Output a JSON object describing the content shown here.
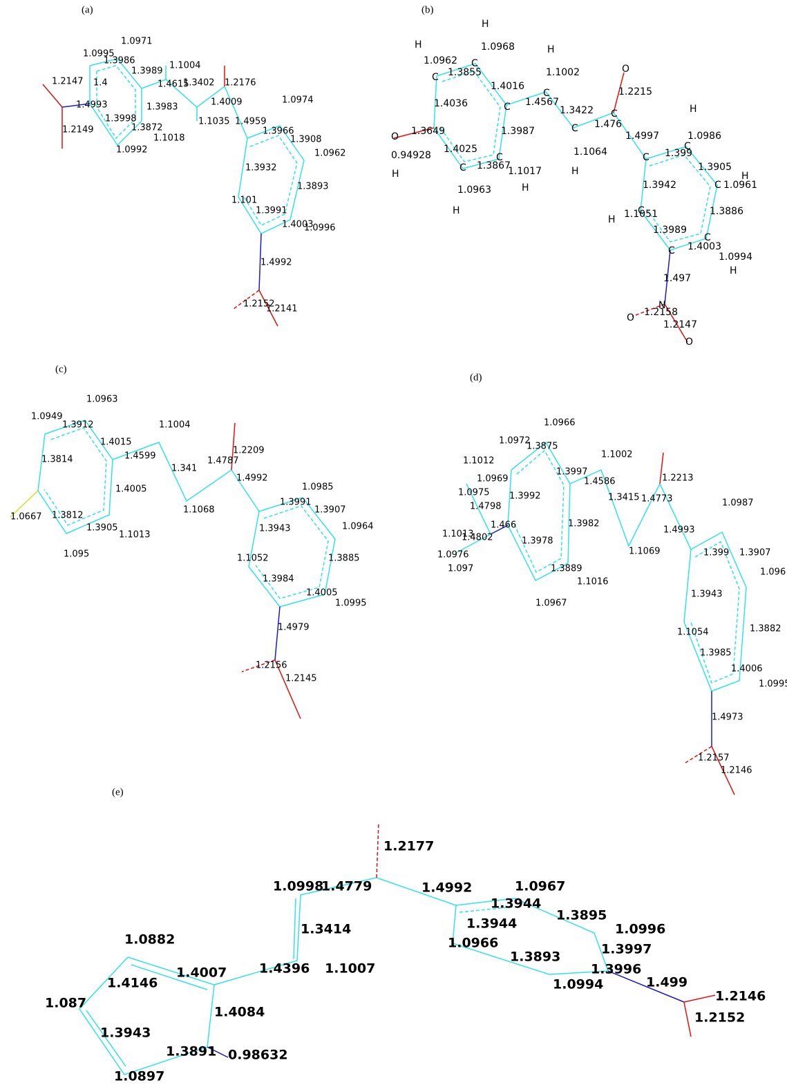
{
  "panels": [
    {
      "tag": "(a)",
      "labels": [
        "1.0971",
        "1.0995",
        "1.3986",
        "1.3989",
        "1.1004",
        "1.2176",
        "1.4615",
        "1.3402",
        "1.2147",
        "1.4",
        "1.4993",
        "1.4009",
        "1.0974",
        "1.3983",
        "1.2149",
        "1.3998",
        "1.1035",
        "1.4959",
        "1.3966",
        "1.3908",
        "1.3872",
        "1.1018",
        "1.0992",
        "1.0962",
        "1.3932",
        "1.3893",
        "1.101",
        "1.3991",
        "1.4003",
        "1.0996",
        "1.4992",
        "1.2152",
        "1.2141"
      ]
    },
    {
      "tag": "(b)",
      "labels": [
        "H",
        "H",
        "1.0968",
        "H",
        "1.0962",
        "C",
        "1.3855",
        "1.1002",
        "O",
        "C",
        "1.4016",
        "C",
        "1.2215",
        "1.4036",
        "C",
        "1.4567",
        "1.3422",
        "C",
        "H",
        "C",
        "1.476",
        "1.4997",
        "1.0986",
        "1.3987",
        "O",
        "1.3649",
        "0.94928",
        "1.4025",
        "C",
        "1.399",
        "C",
        "1.3905",
        "H",
        "C",
        "1.0961",
        "1.3867",
        "C",
        "C",
        "1.1017",
        "1.1064",
        "H",
        "H",
        "H",
        "1.0963",
        "1.3942",
        "1.3886",
        "H",
        "H",
        "C",
        "1.1051",
        "1.3989",
        "C",
        "1.4003",
        "C",
        "1.0994",
        "H",
        "1.497",
        "O",
        "1.2158",
        "N",
        "1.2147",
        "O"
      ]
    },
    {
      "tag": "(c)",
      "labels": [
        "1.0963",
        "1.0949",
        "1.3912",
        "1.1004",
        "1.4015",
        "1.2209",
        "1.3814",
        "1.4599",
        "1.341",
        "1.4787",
        "1.4992",
        "1.0985",
        "1.4005",
        "1.3991",
        "1.3907",
        "1.1068",
        "1.0667",
        "1.3812",
        "1.3905",
        "1.1013",
        "1.3943",
        "1.0964",
        "1.095",
        "1.1052",
        "1.3885",
        "1.3984",
        "1.4005",
        "1.0995",
        "1.4979",
        "1.2156",
        "1.2145"
      ]
    },
    {
      "tag": "(d)",
      "labels": [
        "1.0966",
        "1.0972",
        "1.3875",
        "1.1002",
        "1.1012",
        "1.3997",
        "1.2213",
        "1.0969",
        "1.4586",
        "1.0975",
        "1.3415",
        "1.3992",
        "1.4773",
        "1.4798",
        "1.0987",
        "1.3982",
        "1.4993",
        "1.1013",
        "1.466",
        "1.4802",
        "1.3978",
        "1.1069",
        "1.399",
        "1.3907",
        "1.0976",
        "1.3889",
        "1.097",
        "1.1016",
        "1.096",
        "1.3943",
        "1.0967",
        "1.3882",
        "1.1054",
        "1.3985",
        "1.4006",
        "1.0995",
        "1.4973",
        "1.2157",
        "1.2146"
      ]
    },
    {
      "tag": "(e)",
      "labels": [
        "1.2177",
        "1.0998",
        "1.4779",
        "1.4992",
        "1.0967",
        "1.3944",
        "1.3895",
        "1.3414",
        "1.3944",
        "1.0996",
        "1.0882",
        "1.0966",
        "1.3997",
        "1.3893",
        "1.4007",
        "1.4396",
        "1.1007",
        "1.3996",
        "1.4146",
        "1.0994",
        "1.499",
        "1.2146",
        "1.087",
        "1.4084",
        "1.2152",
        "1.3943",
        "1.3891",
        "0.98632",
        "1.0897"
      ]
    }
  ]
}
